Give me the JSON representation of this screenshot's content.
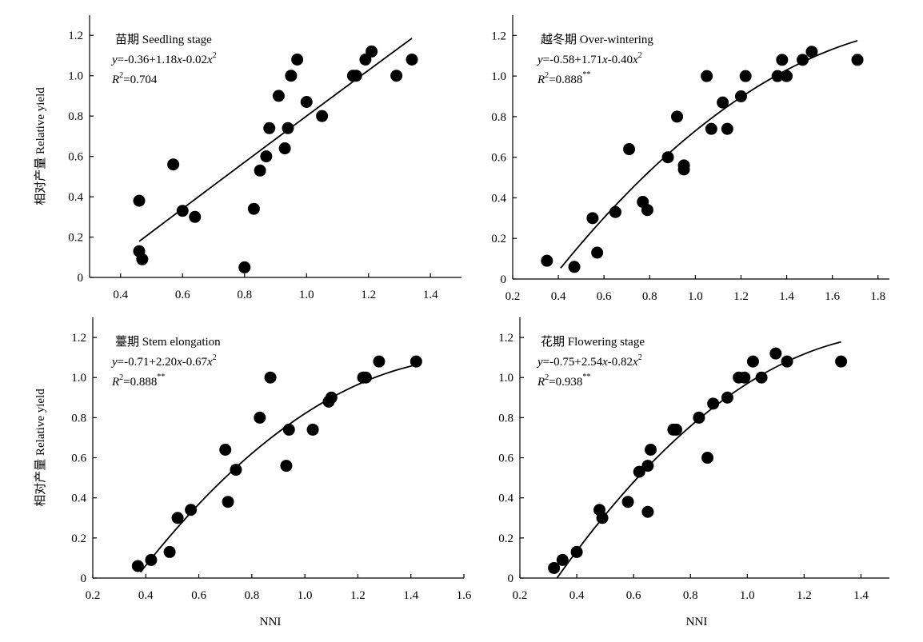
{
  "chart_data": [
    {
      "type": "scatter",
      "title": "苗期 Seedling stage",
      "equation": {
        "y": "y",
        "eq_prefix": "=-0.36+1.18",
        "x1": "x",
        "mid": "-0.02",
        "x2": "x",
        "sup": "2"
      },
      "r2": {
        "r": "R",
        "sup": "2",
        "value": "=0.704",
        "sig": ""
      },
      "ylabel": "相对产量 Relative yield",
      "xlabel": "",
      "xlim": [
        0.3,
        1.5
      ],
      "ylim": [
        0,
        1.3
      ],
      "xticks": [
        0.4,
        0.6,
        0.8,
        1.0,
        1.2,
        1.4
      ],
      "xtick_labels": [
        "0.4",
        "0.6",
        "0.8",
        "1.0",
        "1.2",
        "1.4"
      ],
      "yticks": [
        0,
        0.2,
        0.4,
        0.6,
        0.8,
        1.0,
        1.2
      ],
      "ytick_labels": [
        "0",
        "0.2",
        "0.4",
        "0.6",
        "0.8",
        "1.0",
        "1.2"
      ],
      "fit": {
        "a": -0.36,
        "b": 1.18,
        "c": -0.02,
        "x_range": [
          0.46,
          1.34
        ]
      },
      "points": [
        [
          0.46,
          0.38
        ],
        [
          0.46,
          0.13
        ],
        [
          0.47,
          0.09
        ],
        [
          0.57,
          0.56
        ],
        [
          0.6,
          0.33
        ],
        [
          0.64,
          0.3
        ],
        [
          0.8,
          0.05
        ],
        [
          0.83,
          0.34
        ],
        [
          0.85,
          0.53
        ],
        [
          0.87,
          0.6
        ],
        [
          0.88,
          0.74
        ],
        [
          0.91,
          0.9
        ],
        [
          0.93,
          0.64
        ],
        [
          0.94,
          0.74
        ],
        [
          0.95,
          1.0
        ],
        [
          0.97,
          1.08
        ],
        [
          1.0,
          0.87
        ],
        [
          1.05,
          0.8
        ],
        [
          1.15,
          1.0
        ],
        [
          1.16,
          1.0
        ],
        [
          1.19,
          1.08
        ],
        [
          1.21,
          1.12
        ],
        [
          1.29,
          1.0
        ],
        [
          1.34,
          1.08
        ]
      ]
    },
    {
      "type": "scatter",
      "title": "越冬期 Over-wintering",
      "equation": {
        "y": "y",
        "eq_prefix": "=-0.58+1.71",
        "x1": "x",
        "mid": "-0.40",
        "x2": "x",
        "sup": "2"
      },
      "r2": {
        "r": "R",
        "sup": "2",
        "value": "=0.888",
        "sig": "**"
      },
      "ylabel": "",
      "xlabel": "",
      "xlim": [
        0.2,
        1.85
      ],
      "ylim": [
        0,
        1.3
      ],
      "xticks": [
        0.2,
        0.4,
        0.6,
        0.8,
        1.0,
        1.2,
        1.4,
        1.6,
        1.8
      ],
      "xtick_labels": [
        "0.2",
        "0.4",
        "0.6",
        "0.8",
        "1.0",
        "1.2",
        "1.4",
        "1.6",
        "1.8"
      ],
      "yticks": [
        0,
        0.2,
        0.4,
        0.6,
        0.8,
        1.0,
        1.2
      ],
      "ytick_labels": [
        "0",
        "0.2",
        "0.4",
        "0.6",
        "0.8",
        "1.0",
        "1.2"
      ],
      "fit": {
        "a": -0.58,
        "b": 1.71,
        "c": -0.4,
        "x_range": [
          0.41,
          1.71
        ]
      },
      "points": [
        [
          0.35,
          0.09
        ],
        [
          0.47,
          0.06
        ],
        [
          0.55,
          0.3
        ],
        [
          0.57,
          0.13
        ],
        [
          0.65,
          0.33
        ],
        [
          0.71,
          0.64
        ],
        [
          0.77,
          0.38
        ],
        [
          0.79,
          0.34
        ],
        [
          0.88,
          0.6
        ],
        [
          0.92,
          0.8
        ],
        [
          0.95,
          0.56
        ],
        [
          0.95,
          0.54
        ],
        [
          1.05,
          1.0
        ],
        [
          1.07,
          0.74
        ],
        [
          1.12,
          0.87
        ],
        [
          1.14,
          0.74
        ],
        [
          1.2,
          0.9
        ],
        [
          1.22,
          1.0
        ],
        [
          1.36,
          1.0
        ],
        [
          1.38,
          1.08
        ],
        [
          1.4,
          1.0
        ],
        [
          1.47,
          1.08
        ],
        [
          1.51,
          1.12
        ],
        [
          1.71,
          1.08
        ]
      ]
    },
    {
      "type": "scatter",
      "title": "薹期 Stem elongation",
      "equation": {
        "y": "y",
        "eq_prefix": "=-0.71+2.20",
        "x1": "x",
        "mid": "-0.67",
        "x2": "x",
        "sup": "2"
      },
      "r2": {
        "r": "R",
        "sup": "2",
        "value": "=0.888",
        "sig": "**"
      },
      "ylabel": "相对产量 Relative yield",
      "xlabel": "NNI",
      "xlim": [
        0.2,
        1.6
      ],
      "ylim": [
        0,
        1.3
      ],
      "xticks": [
        0.2,
        0.4,
        0.6,
        0.8,
        1.0,
        1.2,
        1.4,
        1.6
      ],
      "xtick_labels": [
        "0.2",
        "0.4",
        "0.6",
        "0.8",
        "1.0",
        "1.2",
        "1.4",
        "1.6"
      ],
      "yticks": [
        0,
        0.2,
        0.4,
        0.6,
        0.8,
        1.0,
        1.2
      ],
      "ytick_labels": [
        "0",
        "0.2",
        "0.4",
        "0.6",
        "0.8",
        "1.0",
        "1.2"
      ],
      "fit": {
        "a": -0.71,
        "b": 2.2,
        "c": -0.67,
        "x_range": [
          0.38,
          1.42
        ]
      },
      "points": [
        [
          0.37,
          0.06
        ],
        [
          0.42,
          0.09
        ],
        [
          0.49,
          0.13
        ],
        [
          0.52,
          0.3
        ],
        [
          0.57,
          0.34
        ],
        [
          0.7,
          0.64
        ],
        [
          0.71,
          0.38
        ],
        [
          0.74,
          0.54
        ],
        [
          0.83,
          0.8
        ],
        [
          0.87,
          1.0
        ],
        [
          0.93,
          0.56
        ],
        [
          0.94,
          0.74
        ],
        [
          1.03,
          0.74
        ],
        [
          1.09,
          0.88
        ],
        [
          1.1,
          0.9
        ],
        [
          1.22,
          1.0
        ],
        [
          1.23,
          1.0
        ],
        [
          1.28,
          1.08
        ],
        [
          1.42,
          1.08
        ]
      ]
    },
    {
      "type": "scatter",
      "title": "花期 Flowering stage",
      "equation": {
        "y": "y",
        "eq_prefix": "=-0.75+2.54",
        "x1": "x",
        "mid": "-0.82",
        "x2": "x",
        "sup": "2"
      },
      "r2": {
        "r": "R",
        "sup": "2",
        "value": "=0.938",
        "sig": "**"
      },
      "ylabel": "",
      "xlabel": "NNI",
      "xlim": [
        0.2,
        1.5
      ],
      "ylim": [
        0,
        1.3
      ],
      "xticks": [
        0.2,
        0.4,
        0.6,
        0.8,
        1.0,
        1.2,
        1.4
      ],
      "xtick_labels": [
        "0.2",
        "0.4",
        "0.6",
        "0.8",
        "1.0",
        "1.2",
        "1.4"
      ],
      "yticks": [
        0,
        0.2,
        0.4,
        0.6,
        0.8,
        1.0,
        1.2
      ],
      "ytick_labels": [
        "0",
        "0.2",
        "0.4",
        "0.6",
        "0.8",
        "1.0",
        "1.2"
      ],
      "fit": {
        "a": -0.75,
        "b": 2.54,
        "c": -0.82,
        "x_range": [
          0.33,
          1.33
        ]
      },
      "points": [
        [
          0.32,
          0.05
        ],
        [
          0.35,
          0.09
        ],
        [
          0.4,
          0.13
        ],
        [
          0.48,
          0.34
        ],
        [
          0.49,
          0.3
        ],
        [
          0.58,
          0.38
        ],
        [
          0.62,
          0.53
        ],
        [
          0.65,
          0.56
        ],
        [
          0.65,
          0.33
        ],
        [
          0.66,
          0.64
        ],
        [
          0.74,
          0.74
        ],
        [
          0.75,
          0.74
        ],
        [
          0.83,
          0.8
        ],
        [
          0.86,
          0.6
        ],
        [
          0.88,
          0.87
        ],
        [
          0.93,
          0.9
        ],
        [
          0.97,
          1.0
        ],
        [
          0.99,
          1.0
        ],
        [
          1.02,
          1.08
        ],
        [
          1.05,
          1.0
        ],
        [
          1.1,
          1.12
        ],
        [
          1.14,
          1.08
        ],
        [
          1.33,
          1.08
        ]
      ]
    }
  ],
  "colors": {
    "ink": "#000000",
    "background": "#ffffff"
  }
}
